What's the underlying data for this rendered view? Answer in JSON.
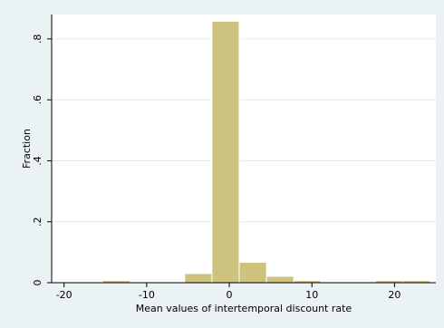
{
  "chart_data": {
    "type": "bar",
    "title": "",
    "xlabel": "Mean values of intertemporal discount rate",
    "ylabel": "Fraction",
    "xlim": [
      -21.5,
      25
    ],
    "ylim": [
      0,
      0.88
    ],
    "x_ticks": [
      -20,
      -10,
      0,
      10,
      20
    ],
    "x_tick_labels": [
      "-20",
      "-10",
      "0",
      "10",
      "20"
    ],
    "y_ticks": [
      0,
      0.2,
      0.4,
      0.6,
      0.8
    ],
    "y_tick_labels": [
      "0",
      ".2",
      ".4",
      ".6",
      ".8"
    ],
    "bin_width": 3.3,
    "bins": [
      {
        "x0": -15.3,
        "x1": -12.0,
        "value": 0.007
      },
      {
        "x0": -12.0,
        "x1": -8.7,
        "value": 0.001
      },
      {
        "x0": -8.7,
        "x1": -5.4,
        "value": 0.001
      },
      {
        "x0": -5.4,
        "x1": -2.1,
        "value": 0.03
      },
      {
        "x0": -2.1,
        "x1": 1.2,
        "value": 0.858
      },
      {
        "x0": 1.2,
        "x1": 4.5,
        "value": 0.067
      },
      {
        "x0": 4.5,
        "x1": 7.8,
        "value": 0.021
      },
      {
        "x0": 7.8,
        "x1": 11.1,
        "value": 0.007
      },
      {
        "x0": 11.1,
        "x1": 14.4,
        "value": 0.001
      },
      {
        "x0": 14.4,
        "x1": 17.7,
        "value": 0.001
      },
      {
        "x0": 17.7,
        "x1": 21.0,
        "value": 0.007
      },
      {
        "x0": 21.0,
        "x1": 24.3,
        "value": 0.007
      }
    ],
    "grid": true,
    "colors": {
      "background": "#eaf2f3",
      "plot_background": "#ffffff",
      "bar_fill": "#cdc27e",
      "bar_stroke": "#ffffff",
      "gridline": "#e3eced"
    }
  }
}
